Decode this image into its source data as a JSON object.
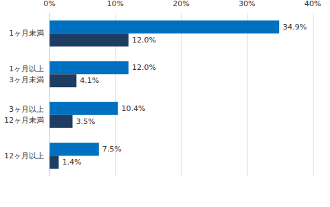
{
  "chart_data": {
    "type": "bar",
    "orientation": "horizontal",
    "categories": [
      "1ヶ月未満",
      "1ヶ月以上\n3ヶ月未満",
      "3ヶ月以上\n12ヶ月未満",
      "12ヶ月以上"
    ],
    "series": [
      {
        "color": "#0070c0",
        "values": [
          34.9,
          12.0,
          10.4,
          7.5
        ],
        "value_labels": [
          "34.9%",
          "12.0%",
          "10.4%",
          "7.5%"
        ]
      },
      {
        "color": "#1f3d63",
        "values": [
          12.0,
          4.1,
          3.5,
          1.4
        ],
        "value_labels": [
          "12.0%",
          "4.1%",
          "3.5%",
          "1.4%"
        ]
      }
    ],
    "xlim": [
      0,
      40
    ],
    "xticks": [
      {
        "value": 0,
        "label": "0%"
      },
      {
        "value": 10,
        "label": "10%"
      },
      {
        "value": 20,
        "label": "20%"
      },
      {
        "value": 30,
        "label": "30%"
      },
      {
        "value": 40,
        "label": "40%"
      }
    ],
    "grid": true,
    "data_labels": true
  }
}
